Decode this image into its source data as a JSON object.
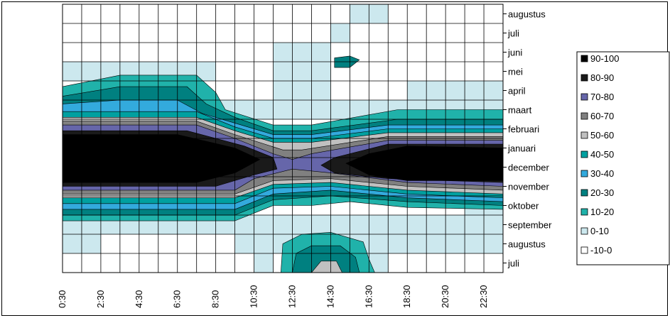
{
  "chart_data": {
    "type": "contour",
    "x_tick_labels": [
      "0:30",
      "2:30",
      "4:30",
      "6:30",
      "8:30",
      "10:30",
      "12:30",
      "14:30",
      "16:30",
      "18:30",
      "20:30",
      "22:30"
    ],
    "y_tick_labels": [
      "juli",
      "augustus",
      "september",
      "oktober",
      "november",
      "december",
      "januari",
      "februari",
      "maart",
      "april",
      "mei",
      "juni",
      "juli",
      "augustus"
    ],
    "grid": true,
    "legend_position": "right",
    "legend": [
      {
        "label": "90-100",
        "color": "#000000"
      },
      {
        "label": "80-90",
        "color": "#1a1a1a"
      },
      {
        "label": "70-80",
        "color": "#6666aa"
      },
      {
        "label": "60-70",
        "color": "#808080"
      },
      {
        "label": "50-60",
        "color": "#c0c0c0"
      },
      {
        "label": "40-50",
        "color": "#00a0a0"
      },
      {
        "label": "30-40",
        "color": "#33aadd"
      },
      {
        "label": "20-30",
        "color": "#008080"
      },
      {
        "label": "10-20",
        "color": "#20b2aa"
      },
      {
        "label": "0-10",
        "color": "#cce8ee"
      },
      {
        "label": "-10-0",
        "color": "#ffffff"
      }
    ],
    "x_range": [
      0,
      23
    ],
    "y_range": [
      0,
      13
    ]
  }
}
